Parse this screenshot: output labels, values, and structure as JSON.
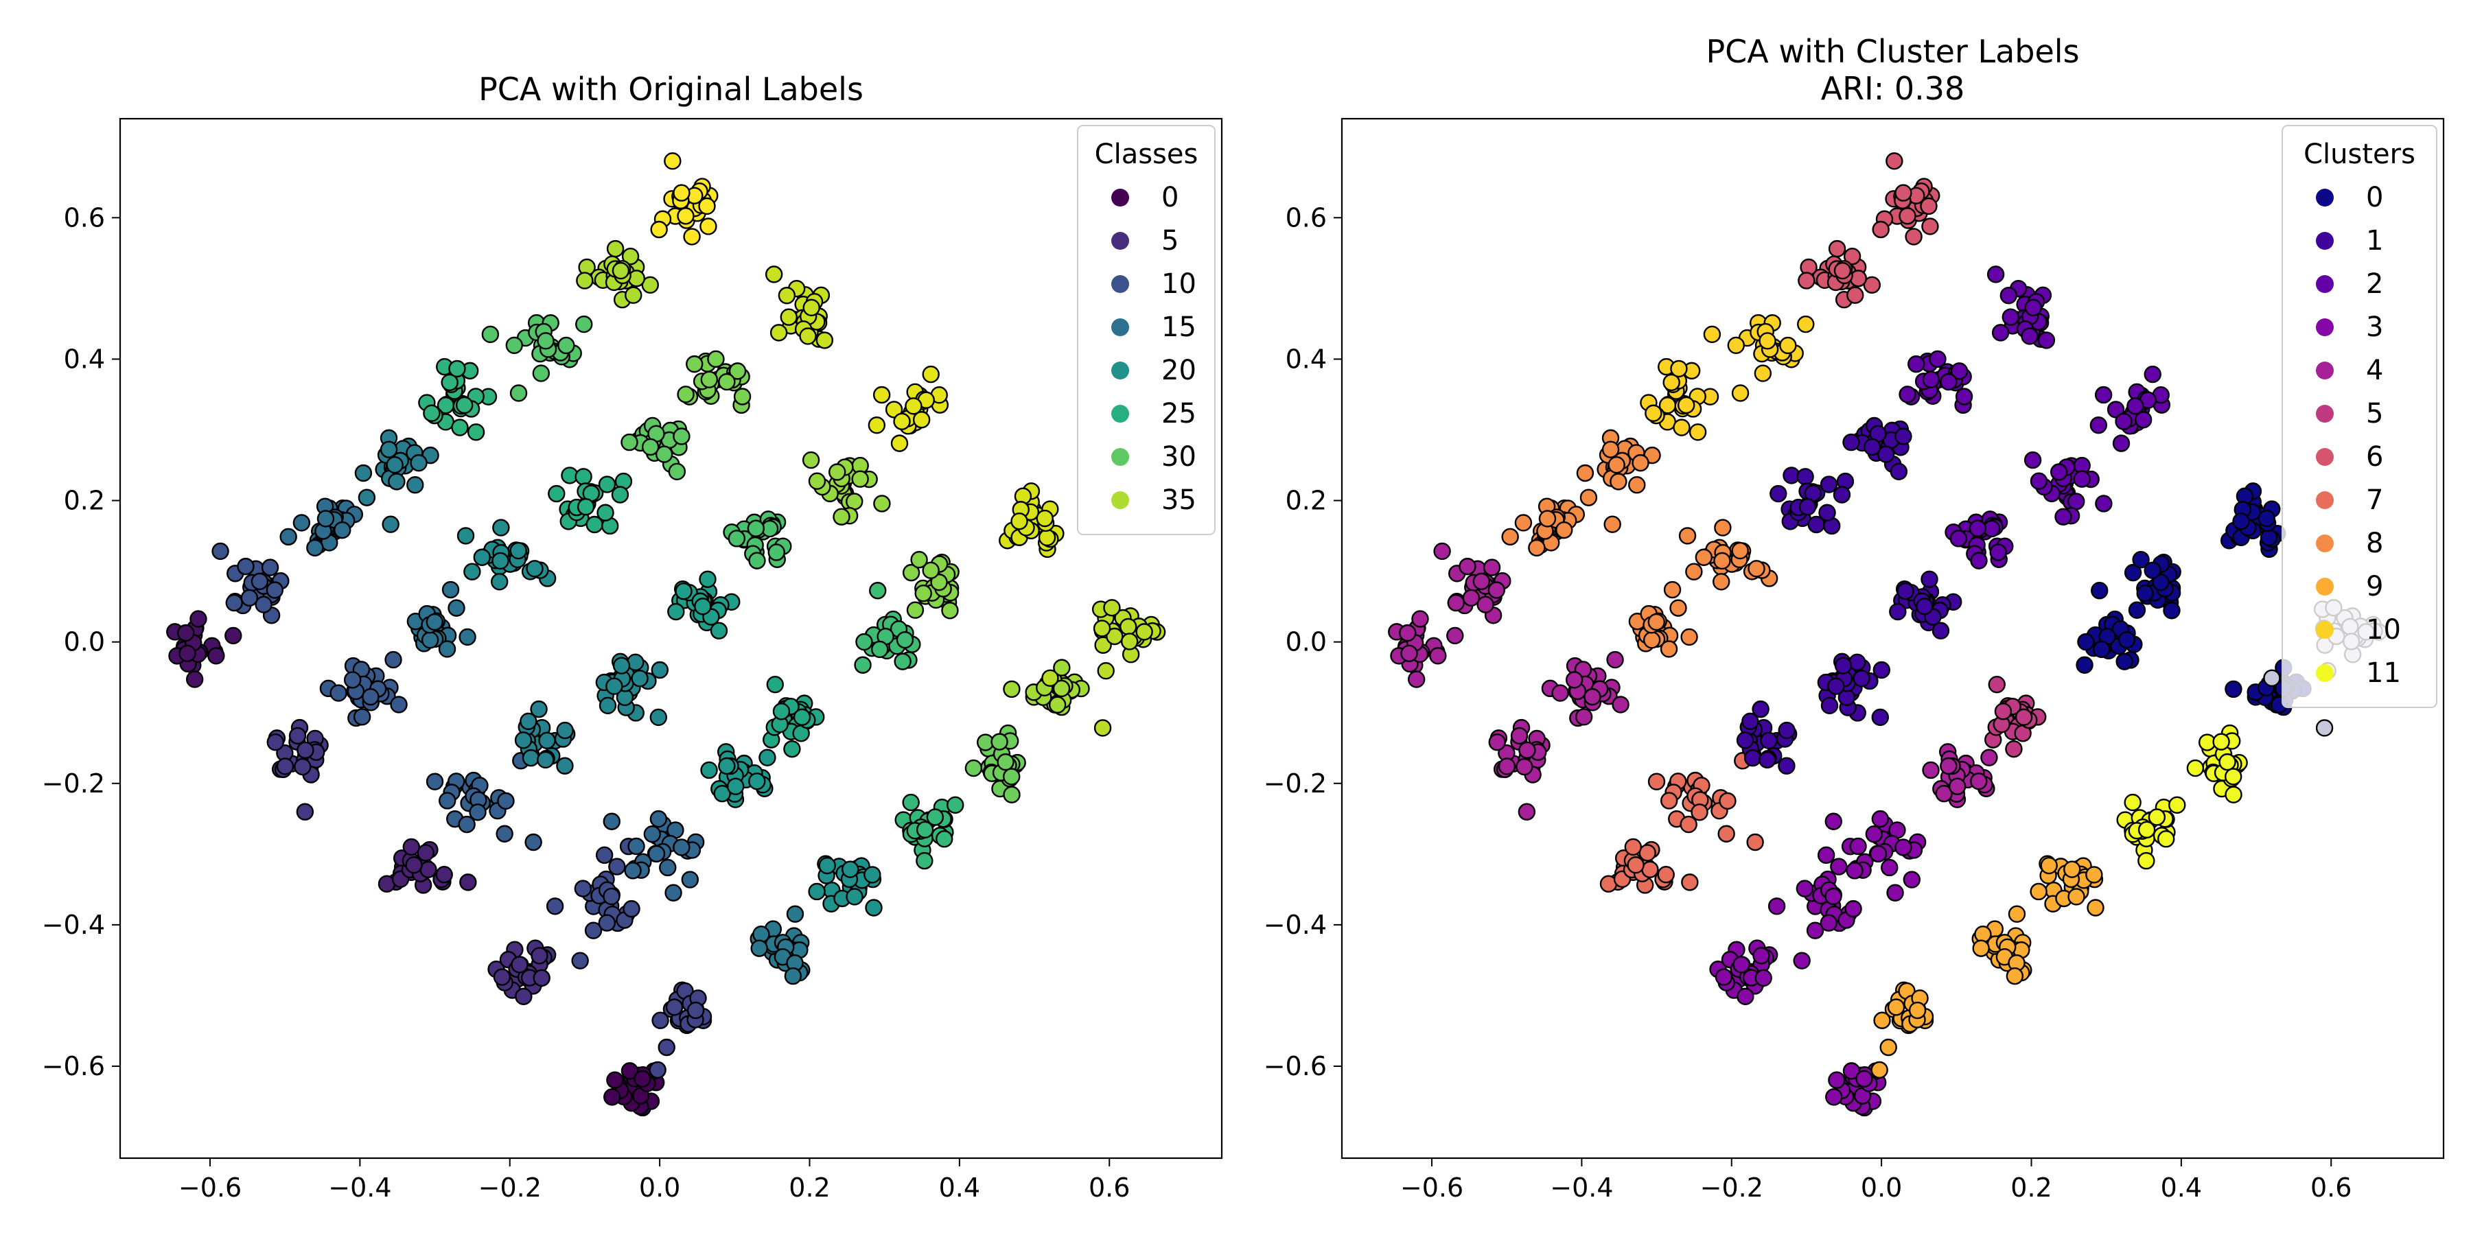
{
  "chart_data": [
    {
      "type": "scatter",
      "title": "PCA with Original Labels",
      "subtitle": "",
      "xlabel": "",
      "ylabel": "",
      "xlim": [
        -0.72,
        0.75
      ],
      "ylim": [
        -0.73,
        0.74
      ],
      "xticks": [
        "−0.6",
        "−0.4",
        "−0.2",
        "0.0",
        "0.2",
        "0.4",
        "0.6"
      ],
      "yticks": [
        "−0.6",
        "−0.4",
        "−0.2",
        "0.0",
        "0.2",
        "0.4",
        "0.6"
      ],
      "grid": false,
      "colormap": "viridis",
      "legend": {
        "title": "Classes",
        "placement": "top-right",
        "entries": [
          {
            "label": "0",
            "color": "#440154"
          },
          {
            "label": "5",
            "color": "#472d7b"
          },
          {
            "label": "10",
            "color": "#3b528b"
          },
          {
            "label": "15",
            "color": "#2c728e"
          },
          {
            "label": "20",
            "color": "#21918c"
          },
          {
            "label": "25",
            "color": "#28ae80"
          },
          {
            "label": "30",
            "color": "#5ec962"
          },
          {
            "label": "35",
            "color": "#addc30"
          }
        ]
      },
      "groups": [
        {
          "center": [
            -0.03,
            -0.63
          ],
          "color": "#440154"
        },
        {
          "center": [
            -0.62,
            0.0
          ],
          "color": "#471163"
        },
        {
          "center": [
            -0.33,
            -0.32
          ],
          "color": "#482173"
        },
        {
          "center": [
            -0.18,
            -0.47
          ],
          "color": "#482f7d"
        },
        {
          "center": [
            -0.48,
            -0.16
          ],
          "color": "#453882"
        },
        {
          "center": [
            0.04,
            -0.52
          ],
          "color": "#414487"
        },
        {
          "center": [
            -0.07,
            -0.37
          ],
          "color": "#3e4c8a"
        },
        {
          "center": [
            -0.53,
            0.07
          ],
          "color": "#3b528b"
        },
        {
          "center": [
            -0.39,
            -0.07
          ],
          "color": "#38598c"
        },
        {
          "center": [
            -0.24,
            -0.22
          ],
          "color": "#355f8d"
        },
        {
          "center": [
            0.0,
            -0.29
          ],
          "color": "#31668e"
        },
        {
          "center": [
            -0.44,
            0.17
          ],
          "color": "#2e6d8e"
        },
        {
          "center": [
            -0.3,
            0.02
          ],
          "color": "#2c728e"
        },
        {
          "center": [
            0.16,
            -0.44
          ],
          "color": "#2a788e"
        },
        {
          "center": [
            -0.35,
            0.25
          ],
          "color": "#287d8e"
        },
        {
          "center": [
            -0.15,
            -0.14
          ],
          "color": "#26828e"
        },
        {
          "center": [
            -0.05,
            -0.06
          ],
          "color": "#24878e"
        },
        {
          "center": [
            -0.2,
            0.11
          ],
          "color": "#228c8d"
        },
        {
          "center": [
            0.25,
            -0.34
          ],
          "color": "#20928c"
        },
        {
          "center": [
            0.1,
            -0.19
          ],
          "color": "#1f978b"
        },
        {
          "center": [
            0.05,
            0.06
          ],
          "color": "#1f9e89"
        },
        {
          "center": [
            0.18,
            -0.1
          ],
          "color": "#22a785"
        },
        {
          "center": [
            -0.1,
            0.2
          ],
          "color": "#26ad81"
        },
        {
          "center": [
            -0.27,
            0.35
          ],
          "color": "#2eb37c"
        },
        {
          "center": [
            0.36,
            -0.26
          ],
          "color": "#35b779"
        },
        {
          "center": [
            0.3,
            -0.01
          ],
          "color": "#3fbc73"
        },
        {
          "center": [
            0.13,
            0.15
          ],
          "color": "#4ac16d"
        },
        {
          "center": [
            -0.15,
            0.42
          ],
          "color": "#54c568"
        },
        {
          "center": [
            0.0,
            0.28
          ],
          "color": "#5ec962"
        },
        {
          "center": [
            0.45,
            -0.17
          ],
          "color": "#6ccd5a"
        },
        {
          "center": [
            0.08,
            0.37
          ],
          "color": "#79d151"
        },
        {
          "center": [
            0.37,
            0.08
          ],
          "color": "#86d549"
        },
        {
          "center": [
            0.24,
            0.22
          ],
          "color": "#95d840"
        },
        {
          "center": [
            0.53,
            -0.07
          ],
          "color": "#a2da37"
        },
        {
          "center": [
            -0.06,
            0.52
          ],
          "color": "#addc30"
        },
        {
          "center": [
            0.62,
            0.01
          ],
          "color": "#bade28"
        },
        {
          "center": [
            0.19,
            0.46
          ],
          "color": "#c8e020"
        },
        {
          "center": [
            0.5,
            0.17
          ],
          "color": "#d8e219"
        },
        {
          "center": [
            0.34,
            0.32
          ],
          "color": "#e5e419"
        },
        {
          "center": [
            0.04,
            0.62
          ],
          "color": "#fde725"
        }
      ]
    },
    {
      "type": "scatter",
      "title": "PCA with Cluster Labels",
      "subtitle": "ARI: 0.38",
      "xlabel": "",
      "ylabel": "",
      "xlim": [
        -0.72,
        0.75
      ],
      "ylim": [
        -0.73,
        0.74
      ],
      "xticks": [
        "−0.6",
        "−0.4",
        "−0.2",
        "0.0",
        "0.2",
        "0.4",
        "0.6"
      ],
      "yticks": [
        "−0.6",
        "−0.4",
        "−0.2",
        "0.0",
        "0.2",
        "0.4",
        "0.6"
      ],
      "grid": false,
      "colormap": "plasma",
      "legend": {
        "title": "Clusters",
        "placement": "top-right",
        "entries": [
          {
            "label": "0",
            "color": "#0d0887"
          },
          {
            "label": "1",
            "color": "#3e049c"
          },
          {
            "label": "2",
            "color": "#6300a7"
          },
          {
            "label": "3",
            "color": "#8606a6"
          },
          {
            "label": "4",
            "color": "#a62098"
          },
          {
            "label": "5",
            "color": "#c03a83"
          },
          {
            "label": "6",
            "color": "#d5546e"
          },
          {
            "label": "7",
            "color": "#e76e5b"
          },
          {
            "label": "8",
            "color": "#f58c46"
          },
          {
            "label": "9",
            "color": "#fdac33"
          },
          {
            "label": "10",
            "color": "#fbd124"
          },
          {
            "label": "11",
            "color": "#f0f921"
          }
        ]
      },
      "groups": [
        {
          "center": [
            -0.03,
            -0.63
          ],
          "color": "#8606a6"
        },
        {
          "center": [
            -0.62,
            0.0
          ],
          "color": "#a62098"
        },
        {
          "center": [
            -0.33,
            -0.32
          ],
          "color": "#e76e5b"
        },
        {
          "center": [
            -0.18,
            -0.47
          ],
          "color": "#8606a6"
        },
        {
          "center": [
            -0.48,
            -0.16
          ],
          "color": "#a62098"
        },
        {
          "center": [
            0.04,
            -0.52
          ],
          "color": "#fdac33"
        },
        {
          "center": [
            -0.07,
            -0.37
          ],
          "color": "#8606a6"
        },
        {
          "center": [
            -0.53,
            0.07
          ],
          "color": "#a62098"
        },
        {
          "center": [
            -0.39,
            -0.07
          ],
          "color": "#a62098"
        },
        {
          "center": [
            -0.24,
            -0.22
          ],
          "color": "#e76e5b"
        },
        {
          "center": [
            0.0,
            -0.29
          ],
          "color": "#8606a6"
        },
        {
          "center": [
            -0.44,
            0.17
          ],
          "color": "#f58c46"
        },
        {
          "center": [
            -0.3,
            0.02
          ],
          "color": "#f58c46"
        },
        {
          "center": [
            0.16,
            -0.44
          ],
          "color": "#fdac33"
        },
        {
          "center": [
            -0.35,
            0.25
          ],
          "color": "#f58c46"
        },
        {
          "center": [
            -0.15,
            -0.14
          ],
          "color": "#3e049c"
        },
        {
          "center": [
            -0.05,
            -0.06
          ],
          "color": "#3e049c"
        },
        {
          "center": [
            -0.2,
            0.11
          ],
          "color": "#f58c46"
        },
        {
          "center": [
            0.25,
            -0.34
          ],
          "color": "#fdac33"
        },
        {
          "center": [
            0.1,
            -0.19
          ],
          "color": "#a62098"
        },
        {
          "center": [
            0.05,
            0.06
          ],
          "color": "#3e049c"
        },
        {
          "center": [
            0.18,
            -0.1
          ],
          "color": "#c03a83"
        },
        {
          "center": [
            -0.1,
            0.2
          ],
          "color": "#3e049c"
        },
        {
          "center": [
            -0.27,
            0.35
          ],
          "color": "#fbd124"
        },
        {
          "center": [
            0.36,
            -0.26
          ],
          "color": "#f0f921"
        },
        {
          "center": [
            0.3,
            -0.01
          ],
          "color": "#0d0887"
        },
        {
          "center": [
            0.13,
            0.15
          ],
          "color": "#6300a7"
        },
        {
          "center": [
            -0.15,
            0.42
          ],
          "color": "#fbd124"
        },
        {
          "center": [
            0.0,
            0.28
          ],
          "color": "#3e049c"
        },
        {
          "center": [
            0.45,
            -0.17
          ],
          "color": "#f0f921"
        },
        {
          "center": [
            0.08,
            0.37
          ],
          "color": "#6300a7"
        },
        {
          "center": [
            0.37,
            0.08
          ],
          "color": "#0d0887"
        },
        {
          "center": [
            0.24,
            0.22
          ],
          "color": "#6300a7"
        },
        {
          "center": [
            0.53,
            -0.07
          ],
          "color": "#0d0887"
        },
        {
          "center": [
            -0.06,
            0.52
          ],
          "color": "#d5546e"
        },
        {
          "center": [
            0.62,
            0.01
          ],
          "color": "#c8c8dc"
        },
        {
          "center": [
            0.19,
            0.46
          ],
          "color": "#6300a7"
        },
        {
          "center": [
            0.5,
            0.17
          ],
          "color": "#0d0887"
        },
        {
          "center": [
            0.34,
            0.32
          ],
          "color": "#6300a7"
        },
        {
          "center": [
            0.04,
            0.62
          ],
          "color": "#d5546e"
        }
      ]
    }
  ]
}
